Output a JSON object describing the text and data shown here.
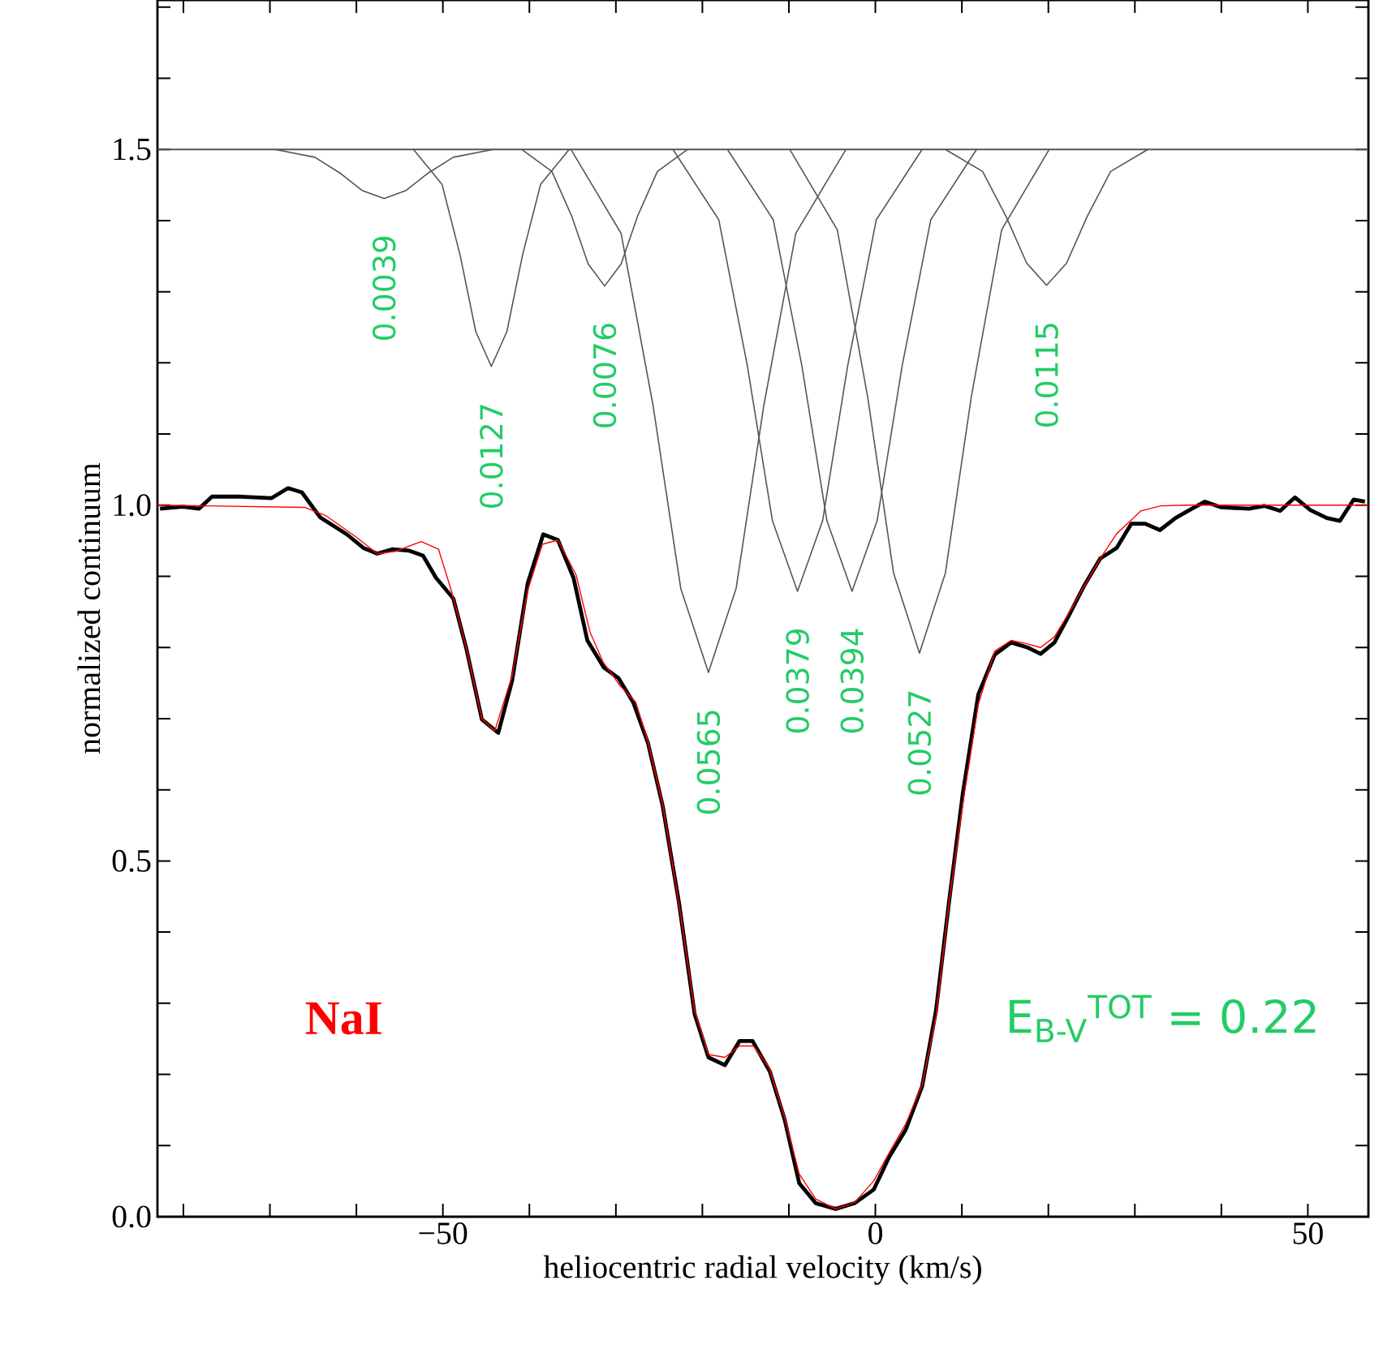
{
  "chart_data": {
    "type": "line",
    "xlabel": "heliocentric radial velocity (km/s)",
    "ylabel": "normalized continuum",
    "xlim": [
      -83,
      57
    ],
    "ylim": [
      0,
      1.71
    ],
    "marker": "none",
    "xticks": [
      {
        "value": -80,
        "label": null
      },
      {
        "value": -70,
        "label": null
      },
      {
        "value": -60,
        "label": null
      },
      {
        "value": -50,
        "label": "−50"
      },
      {
        "value": -40,
        "label": null
      },
      {
        "value": -30,
        "label": null
      },
      {
        "value": -20,
        "label": null
      },
      {
        "value": -10,
        "label": null
      },
      {
        "value": 0,
        "label": "0"
      },
      {
        "value": 10,
        "label": null
      },
      {
        "value": 20,
        "label": null
      },
      {
        "value": 30,
        "label": null
      },
      {
        "value": 40,
        "label": null
      },
      {
        "value": 50,
        "label": "50"
      }
    ],
    "yticks": [
      {
        "value": 0,
        "label": "0.0"
      },
      {
        "value": 0.1,
        "label": null
      },
      {
        "value": 0.2,
        "label": null
      },
      {
        "value": 0.3,
        "label": null
      },
      {
        "value": 0.4,
        "label": null
      },
      {
        "value": 0.5,
        "label": "0.5"
      },
      {
        "value": 0.6,
        "label": null
      },
      {
        "value": 0.7,
        "label": null
      },
      {
        "value": 0.8,
        "label": null
      },
      {
        "value": 0.9,
        "label": null
      },
      {
        "value": 1.0,
        "label": "1.0"
      },
      {
        "value": 1.1,
        "label": null
      },
      {
        "value": 1.2,
        "label": null
      },
      {
        "value": 1.3,
        "label": null
      },
      {
        "value": 1.4,
        "label": null
      },
      {
        "value": 1.5,
        "label": "1.5"
      },
      {
        "value": 1.6,
        "label": null
      },
      {
        "value": 1.7,
        "label": null
      }
    ],
    "ref_lines": [
      {
        "axis": "y",
        "value": 1.5,
        "color": "#555555"
      }
    ],
    "series": [
      {
        "color": "#000000",
        "x": [
          -82.7,
          -80.1,
          -78.2,
          -76.7,
          -73.3,
          -69.8,
          -67.9,
          -66.3,
          -64.2,
          -61.1,
          -59.2,
          -57.6,
          -55.8,
          -53.9,
          -52.3,
          -50.8,
          -48.8,
          -47.3,
          -45.5,
          -43.6,
          -42.0,
          -40.2,
          -38.4,
          -36.7,
          -34.9,
          -33.3,
          -31.4,
          -29.7,
          -28.0,
          -26.3,
          -24.6,
          -22.7,
          -20.9,
          -19.3,
          -17.4,
          -15.7,
          -14.2,
          -12.2,
          -10.5,
          -8.8,
          -6.9,
          -4.6,
          -2.4,
          -0.2,
          1.6,
          3.5,
          5.4,
          7.0,
          8.5,
          10.1,
          11.9,
          13.8,
          15.7,
          17.6,
          19.1,
          20.7,
          22.2,
          24.1,
          26.0,
          27.9,
          29.6,
          31.2,
          32.9,
          34.7,
          36.3,
          38.1,
          40.0,
          43.2,
          45.0,
          46.8,
          48.5,
          50.3,
          52.2,
          53.7,
          55.3,
          56.6
        ],
        "values": [
          0.995,
          0.998,
          0.995,
          1.012,
          1.012,
          1.01,
          1.024,
          1.018,
          0.983,
          0.959,
          0.94,
          0.932,
          0.938,
          0.936,
          0.929,
          0.898,
          0.869,
          0.799,
          0.699,
          0.68,
          0.753,
          0.89,
          0.959,
          0.951,
          0.898,
          0.81,
          0.772,
          0.757,
          0.723,
          0.666,
          0.578,
          0.441,
          0.285,
          0.224,
          0.213,
          0.247,
          0.247,
          0.204,
          0.137,
          0.047,
          0.019,
          0.011,
          0.019,
          0.038,
          0.084,
          0.122,
          0.183,
          0.289,
          0.441,
          0.594,
          0.734,
          0.79,
          0.807,
          0.8,
          0.791,
          0.807,
          0.841,
          0.886,
          0.925,
          0.94,
          0.974,
          0.974,
          0.965,
          0.982,
          0.993,
          1.005,
          0.997,
          0.995,
          0.999,
          0.992,
          1.011,
          0.993,
          0.982,
          0.978,
          1.008,
          1.005
        ]
      },
      {
        "color": "#ff0000",
        "x": [
          -83,
          -66,
          -63.5,
          -60,
          -57.6,
          -55.5,
          -52.5,
          -50.5,
          -49,
          -47.3,
          -45.5,
          -44,
          -42,
          -40.2,
          -38.5,
          -36.7,
          -34.6,
          -33,
          -31.5,
          -29.5,
          -27.7,
          -26.3,
          -24.6,
          -22.7,
          -20.9,
          -19.3,
          -17.4,
          -15.7,
          -14.1,
          -12.3,
          -10.5,
          -8.8,
          -6.9,
          -4.6,
          -2.4,
          -0.2,
          1.6,
          3.5,
          5.4,
          7.0,
          8.5,
          10.1,
          11.9,
          13.8,
          15.7,
          17.6,
          19.1,
          20.7,
          22.2,
          24.1,
          26.0,
          27.9,
          29.4,
          30.7,
          33,
          36,
          57
        ],
        "values": [
          1.0,
          0.997,
          0.985,
          0.955,
          0.932,
          0.935,
          0.949,
          0.938,
          0.879,
          0.8,
          0.7,
          0.683,
          0.76,
          0.88,
          0.945,
          0.951,
          0.902,
          0.822,
          0.78,
          0.746,
          0.723,
          0.668,
          0.58,
          0.44,
          0.29,
          0.228,
          0.224,
          0.24,
          0.24,
          0.21,
          0.14,
          0.06,
          0.025,
          0.011,
          0.02,
          0.05,
          0.09,
          0.13,
          0.185,
          0.28,
          0.44,
          0.58,
          0.72,
          0.795,
          0.81,
          0.805,
          0.8,
          0.815,
          0.845,
          0.885,
          0.925,
          0.96,
          0.977,
          0.992,
          0.999,
          1.0,
          1.0
        ]
      },
      {
        "color": "#555555",
        "x": [
          -69.4,
          -64.8,
          -61.8,
          -59.3,
          -56.8,
          -54.3,
          -51.8,
          -48.8,
          -44.2
        ],
        "values": [
          1.5,
          1.489,
          1.466,
          1.442,
          1.431,
          1.442,
          1.466,
          1.489,
          1.5
        ]
      },
      {
        "color": "#555555",
        "x": [
          -53.4,
          -50.1,
          -48.0,
          -46.2,
          -44.4,
          -42.6,
          -40.8,
          -38.7,
          -35.4
        ],
        "values": [
          1.5,
          1.451,
          1.351,
          1.244,
          1.195,
          1.244,
          1.351,
          1.451,
          1.5
        ]
      },
      {
        "color": "#555555",
        "x": [
          -40.9,
          -37.4,
          -35.1,
          -33.2,
          -31.3,
          -29.4,
          -27.5,
          -25.2,
          -21.7
        ],
        "values": [
          1.5,
          1.469,
          1.406,
          1.339,
          1.308,
          1.339,
          1.406,
          1.469,
          1.5
        ]
      },
      {
        "color": "#555555",
        "x": [
          -35.2,
          -29.4,
          -25.7,
          -22.5,
          -19.3,
          -16.1,
          -12.9,
          -9.2,
          -3.4
        ],
        "values": [
          1.5,
          1.382,
          1.14,
          0.883,
          0.765,
          0.883,
          1.14,
          1.382,
          1.5
        ]
      },
      {
        "color": "#555555",
        "x": [
          -23.4,
          -18.1,
          -14.8,
          -11.9,
          -9.0,
          -6.1,
          -3.2,
          0.1,
          5.4
        ],
        "values": [
          1.5,
          1.401,
          1.196,
          0.978,
          0.879,
          0.978,
          1.196,
          1.401,
          1.5
        ]
      },
      {
        "color": "#555555",
        "x": [
          -17.1,
          -11.8,
          -8.5,
          -5.6,
          -2.7,
          0.2,
          3.1,
          6.4,
          11.7
        ],
        "values": [
          1.5,
          1.401,
          1.196,
          0.978,
          0.879,
          0.978,
          1.196,
          1.401,
          1.5
        ]
      },
      {
        "color": "#555555",
        "x": [
          -9.9,
          -4.4,
          -0.9,
          2.1,
          5.1,
          8.1,
          11.1,
          14.6,
          20.1
        ],
        "values": [
          1.5,
          1.387,
          1.153,
          0.905,
          0.792,
          0.905,
          1.153,
          1.387,
          1.5
        ]
      },
      {
        "color": "#555555",
        "x": [
          8.1,
          12.4,
          15.1,
          17.5,
          19.8,
          22.1,
          24.5,
          27.2,
          31.5
        ],
        "values": [
          1.5,
          1.469,
          1.406,
          1.34,
          1.309,
          1.34,
          1.406,
          1.469,
          1.5
        ]
      }
    ],
    "annotations": [
      "0.0039",
      "0.0127",
      "0.0076",
      "0.0565",
      "0.0379",
      "0.0394",
      "0.0527",
      "0.0115",
      "NaI",
      "E$_{B-V}$$^{TOT}$ = 0.22"
    ]
  }
}
